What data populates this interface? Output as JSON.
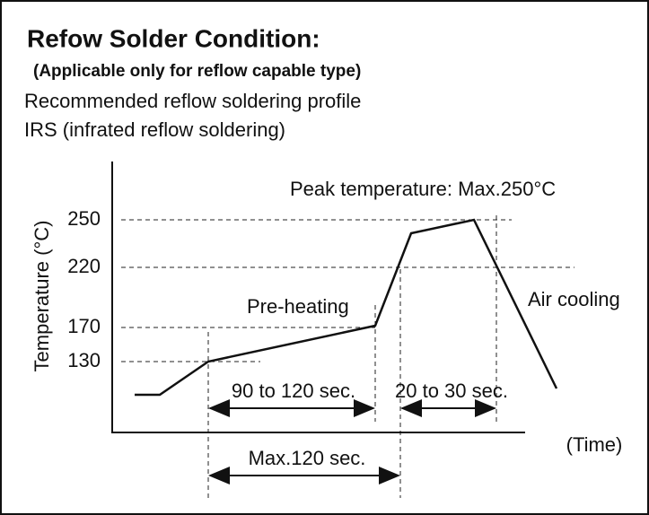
{
  "header": {
    "title": "Refow Solder Condition:",
    "subtitle": "(Applicable only for reflow capable type)",
    "lines": [
      "Recommended reflow soldering profile",
      "IRS (infrated reflow soldering)"
    ]
  },
  "diagram": {
    "y_axis_title": "Temperature (°C)",
    "x_axis_title": "(Time)",
    "y_labels": [
      "250",
      "220",
      "170",
      "130"
    ],
    "annotations": {
      "peak": "Peak temperature: Max.250°C",
      "preheat": "Pre-heating",
      "cooling": "Air cooling"
    },
    "durations": [
      "90 to 120 sec.",
      "20 to 30 sec.",
      "Max.120 sec."
    ]
  }
}
